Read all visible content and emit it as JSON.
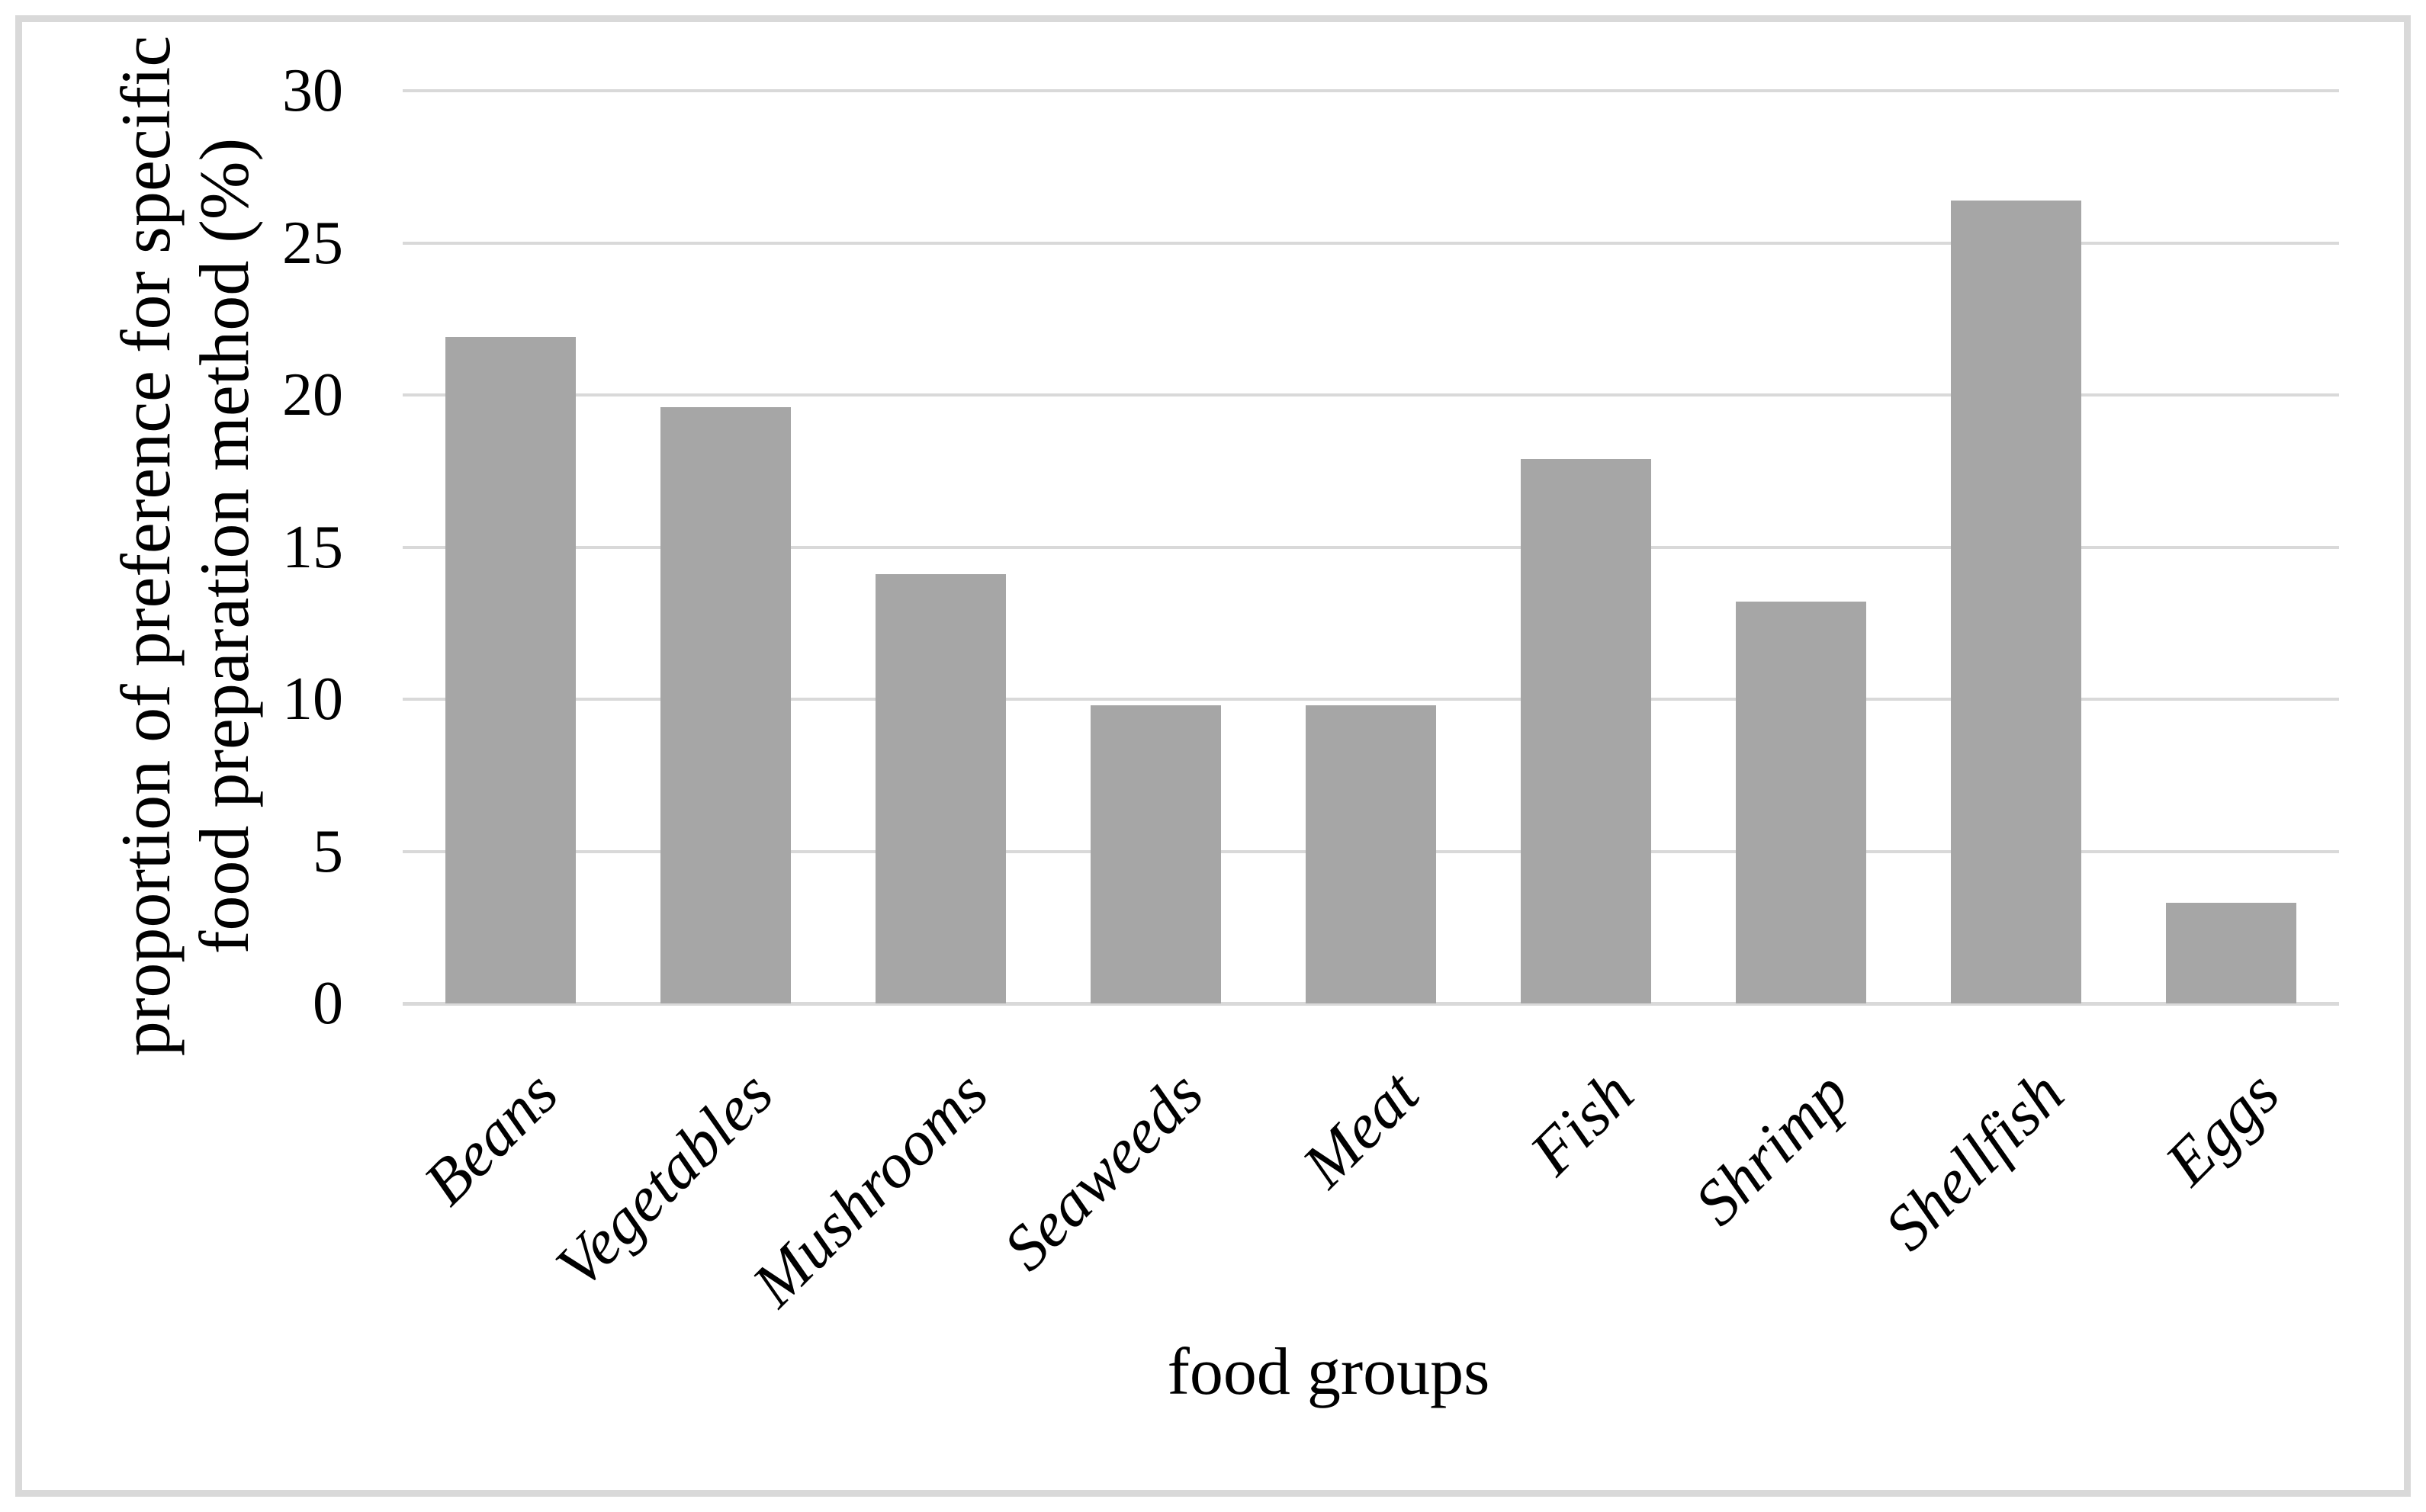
{
  "chart_data": {
    "type": "bar",
    "title": "",
    "categories": [
      "Beans",
      "Vegetables",
      "Mushrooms",
      "Seaweeds",
      "Meat",
      "Fish",
      "Shrimp",
      "Shellfish",
      "Eggs"
    ],
    "values": [
      21.9,
      19.6,
      14.1,
      9.8,
      9.8,
      17.9,
      13.2,
      26.4,
      3.3
    ],
    "xlabel": "food groups",
    "ylabel_lines": [
      "proportion of preference for specific",
      "food preparation method (%)"
    ],
    "ylim": [
      0,
      30
    ],
    "yticks": [
      0,
      5,
      10,
      15,
      20,
      25,
      30
    ],
    "grid": true,
    "legend": "none",
    "bar_color": "#a6a6a6",
    "gridline_color": "#d9d9d9",
    "axis_line_color": "#d9d9d9",
    "border_color": "#d9d9d9",
    "text_color": "#000000",
    "background_color": "#ffffff"
  }
}
